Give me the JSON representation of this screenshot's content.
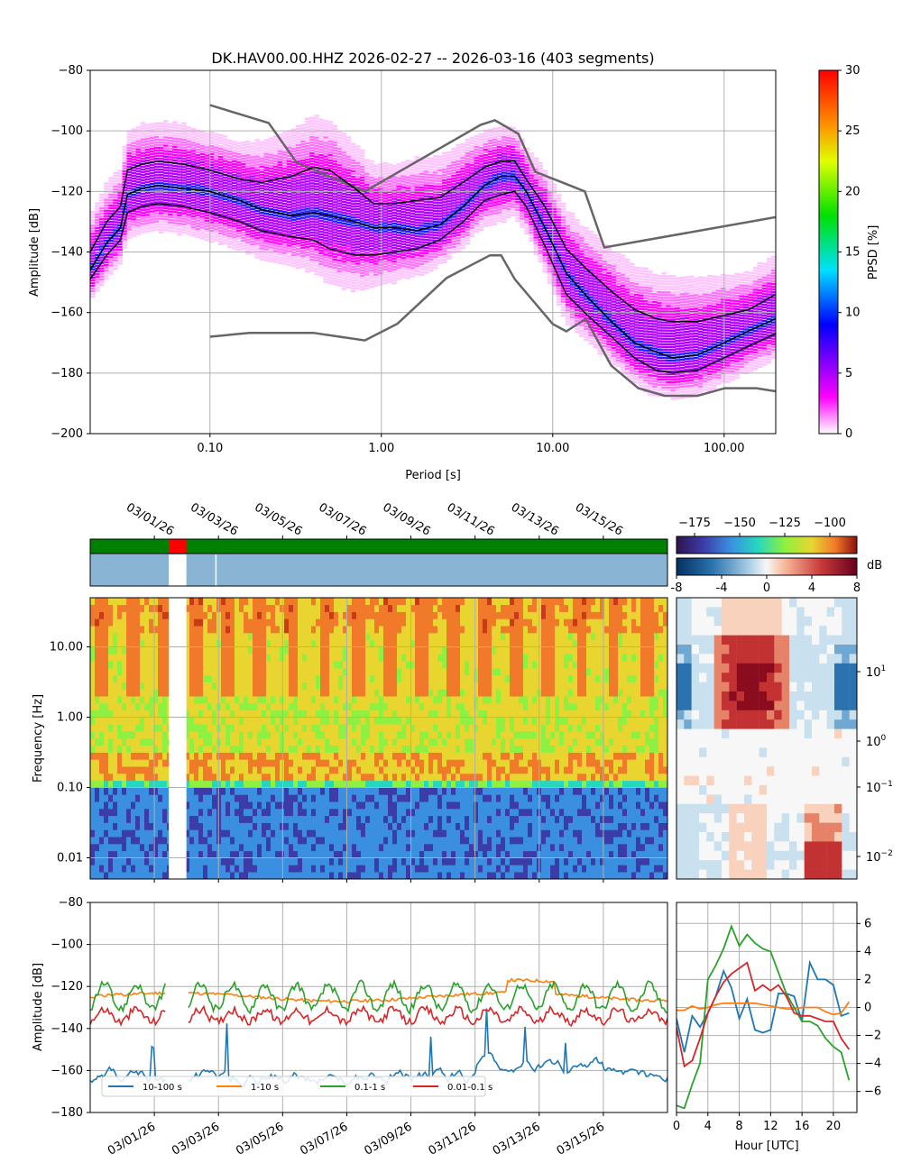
{
  "colors": {
    "ppsd_cmap": [
      "#ffffff",
      "#ff00ff",
      "#0000ff",
      "#00ffff",
      "#00ff00",
      "#ffff00",
      "#ff0000"
    ],
    "noise_model": "#666666",
    "percentile": "#000000",
    "avail_ok": "#008000",
    "avail_gap": "#ff0000",
    "coverage": "#8ab4d4",
    "band_10_100": "#1f77b4",
    "band_1_10": "#ff7f0e",
    "band_01_1": "#2ca02c",
    "band_001_01": "#d62728",
    "grid": "#b0b0b0"
  },
  "chart_data": [
    {
      "id": "ppsd",
      "type": "heatmap",
      "title": "DK.HAV00.00.HHZ   2026-02-27 -- 2026-03-16  (403 segments)",
      "xlabel": "Period [s]",
      "ylabel": "Amplitude [dB]",
      "xscale": "log",
      "xlim": [
        0.02,
        200
      ],
      "ylim": [
        -200,
        -80
      ],
      "xticks": [
        0.1,
        1,
        10,
        100
      ],
      "xtick_labels": [
        "0.10",
        "1.00",
        "10.00",
        "100.00"
      ],
      "yticks": [
        -200,
        -180,
        -160,
        -140,
        -120,
        -100,
        -80
      ],
      "ytick_labels": [
        "−200",
        "−180",
        "−160",
        "−140",
        "−120",
        "−100",
        "−80"
      ],
      "colorbar": {
        "label": "PPSD [%]",
        "range": [
          0,
          30
        ],
        "ticks": [
          0,
          5,
          10,
          15,
          20,
          25,
          30
        ],
        "tick_labels": [
          "0",
          "5",
          "10",
          "15",
          "20",
          "25",
          "30"
        ]
      },
      "percentile_periods": [
        0.02,
        0.025,
        0.03,
        0.033,
        0.04,
        0.05,
        0.07,
        0.1,
        0.15,
        0.2,
        0.3,
        0.4,
        0.5,
        0.7,
        0.9,
        1.2,
        1.6,
        2.2,
        3,
        4,
        5,
        6,
        7,
        9,
        12,
        16,
        22,
        30,
        40,
        50,
        70,
        100,
        140,
        200
      ],
      "percentile_lines": [
        {
          "name": "upper",
          "values": [
            -140,
            -130,
            -125,
            -113,
            -111,
            -110,
            -111,
            -113,
            -116,
            -117,
            -115,
            -112,
            -113,
            -119,
            -124,
            -124,
            -123,
            -122,
            -117,
            -112,
            -110,
            -110,
            -116,
            -125,
            -139,
            -146,
            -153,
            -159,
            -162,
            -163,
            -163,
            -161,
            -159,
            -154
          ]
        },
        {
          "name": "median",
          "values": [
            -146,
            -137,
            -132,
            -121,
            -119,
            -118,
            -119,
            -120,
            -123,
            -126,
            -128,
            -127,
            -128,
            -130,
            -132,
            -132,
            -133,
            -131,
            -125,
            -118,
            -115,
            -115,
            -120,
            -132,
            -147,
            -155,
            -163,
            -170,
            -173,
            -175,
            -174,
            -170,
            -166,
            -162
          ]
        },
        {
          "name": "lower",
          "values": [
            -149,
            -141,
            -136,
            -127,
            -125,
            -124,
            -125,
            -127,
            -130,
            -133,
            -135,
            -136,
            -139,
            -141,
            -141,
            -140,
            -139,
            -136,
            -130,
            -123,
            -121,
            -120,
            -125,
            -138,
            -154,
            -161,
            -168,
            -175,
            -179,
            -180,
            -179,
            -175,
            -171,
            -167
          ]
        }
      ],
      "nhnm": {
        "periods": [
          0.1,
          0.22,
          0.32,
          0.8,
          3.8,
          4.6,
          6.3,
          7.9,
          15.4,
          20,
          200
        ],
        "values": [
          -91.5,
          -97.4,
          -110.5,
          -120,
          -98,
          -96.5,
          -101,
          -113.5,
          -120,
          -138.5,
          -128.5
        ]
      },
      "nlnm": {
        "periods": [
          0.1,
          0.17,
          0.4,
          0.8,
          1.24,
          2.4,
          4.3,
          5,
          6,
          10,
          12,
          15.6,
          21.9,
          31.6,
          45,
          70,
          101,
          154,
          200
        ],
        "values": [
          -168,
          -166.7,
          -166.7,
          -169.2,
          -163.7,
          -148.6,
          -141.1,
          -141.1,
          -149,
          -163.8,
          -166.2,
          -162.1,
          -177.5,
          -185,
          -187.5,
          -187.5,
          -185,
          -185,
          -186
        ]
      }
    },
    {
      "id": "availability",
      "type": "timeline",
      "date_ticks": [
        "03/01/26",
        "03/03/26",
        "03/05/26",
        "03/07/26",
        "03/09/26",
        "03/11/26",
        "03/13/26",
        "03/15/26"
      ],
      "date_range": [
        "2026-02-27",
        "2026-03-16"
      ],
      "gap": {
        "start_day": 2.45,
        "end_day": 3.0
      },
      "coverage_gaps": [
        [
          2.45,
          3.0
        ],
        [
          3.9,
          3.93
        ]
      ]
    },
    {
      "id": "spectrogram",
      "type": "heatmap",
      "ylabel": "Frequency [Hz]",
      "yscale": "log",
      "ylim": [
        0.005,
        50
      ],
      "yticks": [
        0.01,
        0.1,
        1,
        10
      ],
      "ytick_labels": [
        "0.01",
        "0.10",
        "1.00",
        "10.00"
      ],
      "colorbar": {
        "range": [
          -185,
          -85
        ],
        "ticks": [
          -175,
          -150,
          -125,
          -100
        ],
        "tick_labels": [
          "−175",
          "−150",
          "−125",
          "−100"
        ]
      }
    },
    {
      "id": "diurnal",
      "type": "heatmap",
      "yscale": "log",
      "ytick_labels": [
        "10^1",
        "10^0",
        "10^−1",
        "10^−2"
      ],
      "colorbar": {
        "label": "dB",
        "range": [
          -8,
          8
        ],
        "ticks": [
          -8,
          -4,
          0,
          4,
          8
        ],
        "tick_labels": [
          "-8",
          "-4",
          "0",
          "4",
          "8"
        ]
      }
    },
    {
      "id": "band_timeseries",
      "type": "line",
      "ylabel": "Amplitude [dB]",
      "ylim": [
        -180,
        -80
      ],
      "yticks": [
        -180,
        -160,
        -140,
        -120,
        -100,
        -80
      ],
      "ytick_labels": [
        "−180",
        "−160",
        "−140",
        "−120",
        "−100",
        "−80"
      ],
      "date_ticks": [
        "03/01/26",
        "03/03/26",
        "03/05/26",
        "03/07/26",
        "03/09/26",
        "03/11/26",
        "03/13/26",
        "03/15/26"
      ],
      "series": [
        {
          "name": "10-100 s",
          "base": -163
        },
        {
          "name": "1-10 s",
          "base": -125
        },
        {
          "name": "0.1-1 s",
          "base": -125
        },
        {
          "name": "0.01-0.1 s",
          "base": -134
        }
      ]
    },
    {
      "id": "band_diurnal",
      "type": "line",
      "xlabel": "Hour [UTC]",
      "xlim": [
        0,
        23
      ],
      "ylim": [
        -7.5,
        7.5
      ],
      "xticks": [
        0,
        4,
        8,
        12,
        16,
        20
      ],
      "xtick_labels": [
        "0",
        "4",
        "8",
        "12",
        "16",
        "20"
      ],
      "yticks": [
        -6,
        -4,
        -2,
        0,
        2,
        4,
        6
      ],
      "ytick_labels": [
        "−6",
        "−4",
        "−2",
        "0",
        "2",
        "4",
        "6"
      ],
      "hours": [
        0,
        1,
        2,
        3,
        4,
        5,
        6,
        7,
        8,
        9,
        10,
        11,
        12,
        13,
        14,
        15,
        16,
        17,
        18,
        19,
        20,
        21,
        22
      ],
      "series": [
        {
          "name": "10-100 s",
          "values": [
            -0.8,
            -3.2,
            -0.6,
            -1.4,
            -0.4,
            0.8,
            2.6,
            1.4,
            -0.8,
            0.6,
            -1.6,
            -1.8,
            -1.6,
            1.0,
            1.0,
            0.8,
            -1.0,
            3.2,
            2.0,
            2.0,
            1.6,
            -0.6,
            -0.4
          ]
        },
        {
          "name": "1-10 s",
          "values": [
            -0.2,
            -0.2,
            0.1,
            -0.1,
            0.0,
            0.2,
            0.3,
            0.3,
            0.3,
            0.3,
            0.3,
            0.2,
            0.1,
            0.0,
            -0.1,
            -0.1,
            0.0,
            0.0,
            0.0,
            -0.3,
            -0.5,
            -0.4,
            0.4
          ]
        },
        {
          "name": "0.1-1 s",
          "values": [
            -7.0,
            -7.2,
            -5.5,
            -4.0,
            2.0,
            3.0,
            4.2,
            5.8,
            4.4,
            5.2,
            4.6,
            4.2,
            4.0,
            2.5,
            1.0,
            0.0,
            -1.0,
            -1.0,
            -1.3,
            -2.2,
            -2.8,
            -3.2,
            -5.2
          ]
        },
        {
          "name": "0.01-0.1 s",
          "values": [
            -1.4,
            -4.2,
            -3.8,
            -2.2,
            -0.4,
            0.8,
            1.8,
            2.4,
            2.8,
            3.2,
            1.2,
            1.6,
            1.2,
            1.6,
            0.8,
            -0.4,
            -0.6,
            -0.6,
            -0.8,
            -1.0,
            -1.0,
            -2.2,
            -3.0
          ]
        }
      ]
    }
  ]
}
